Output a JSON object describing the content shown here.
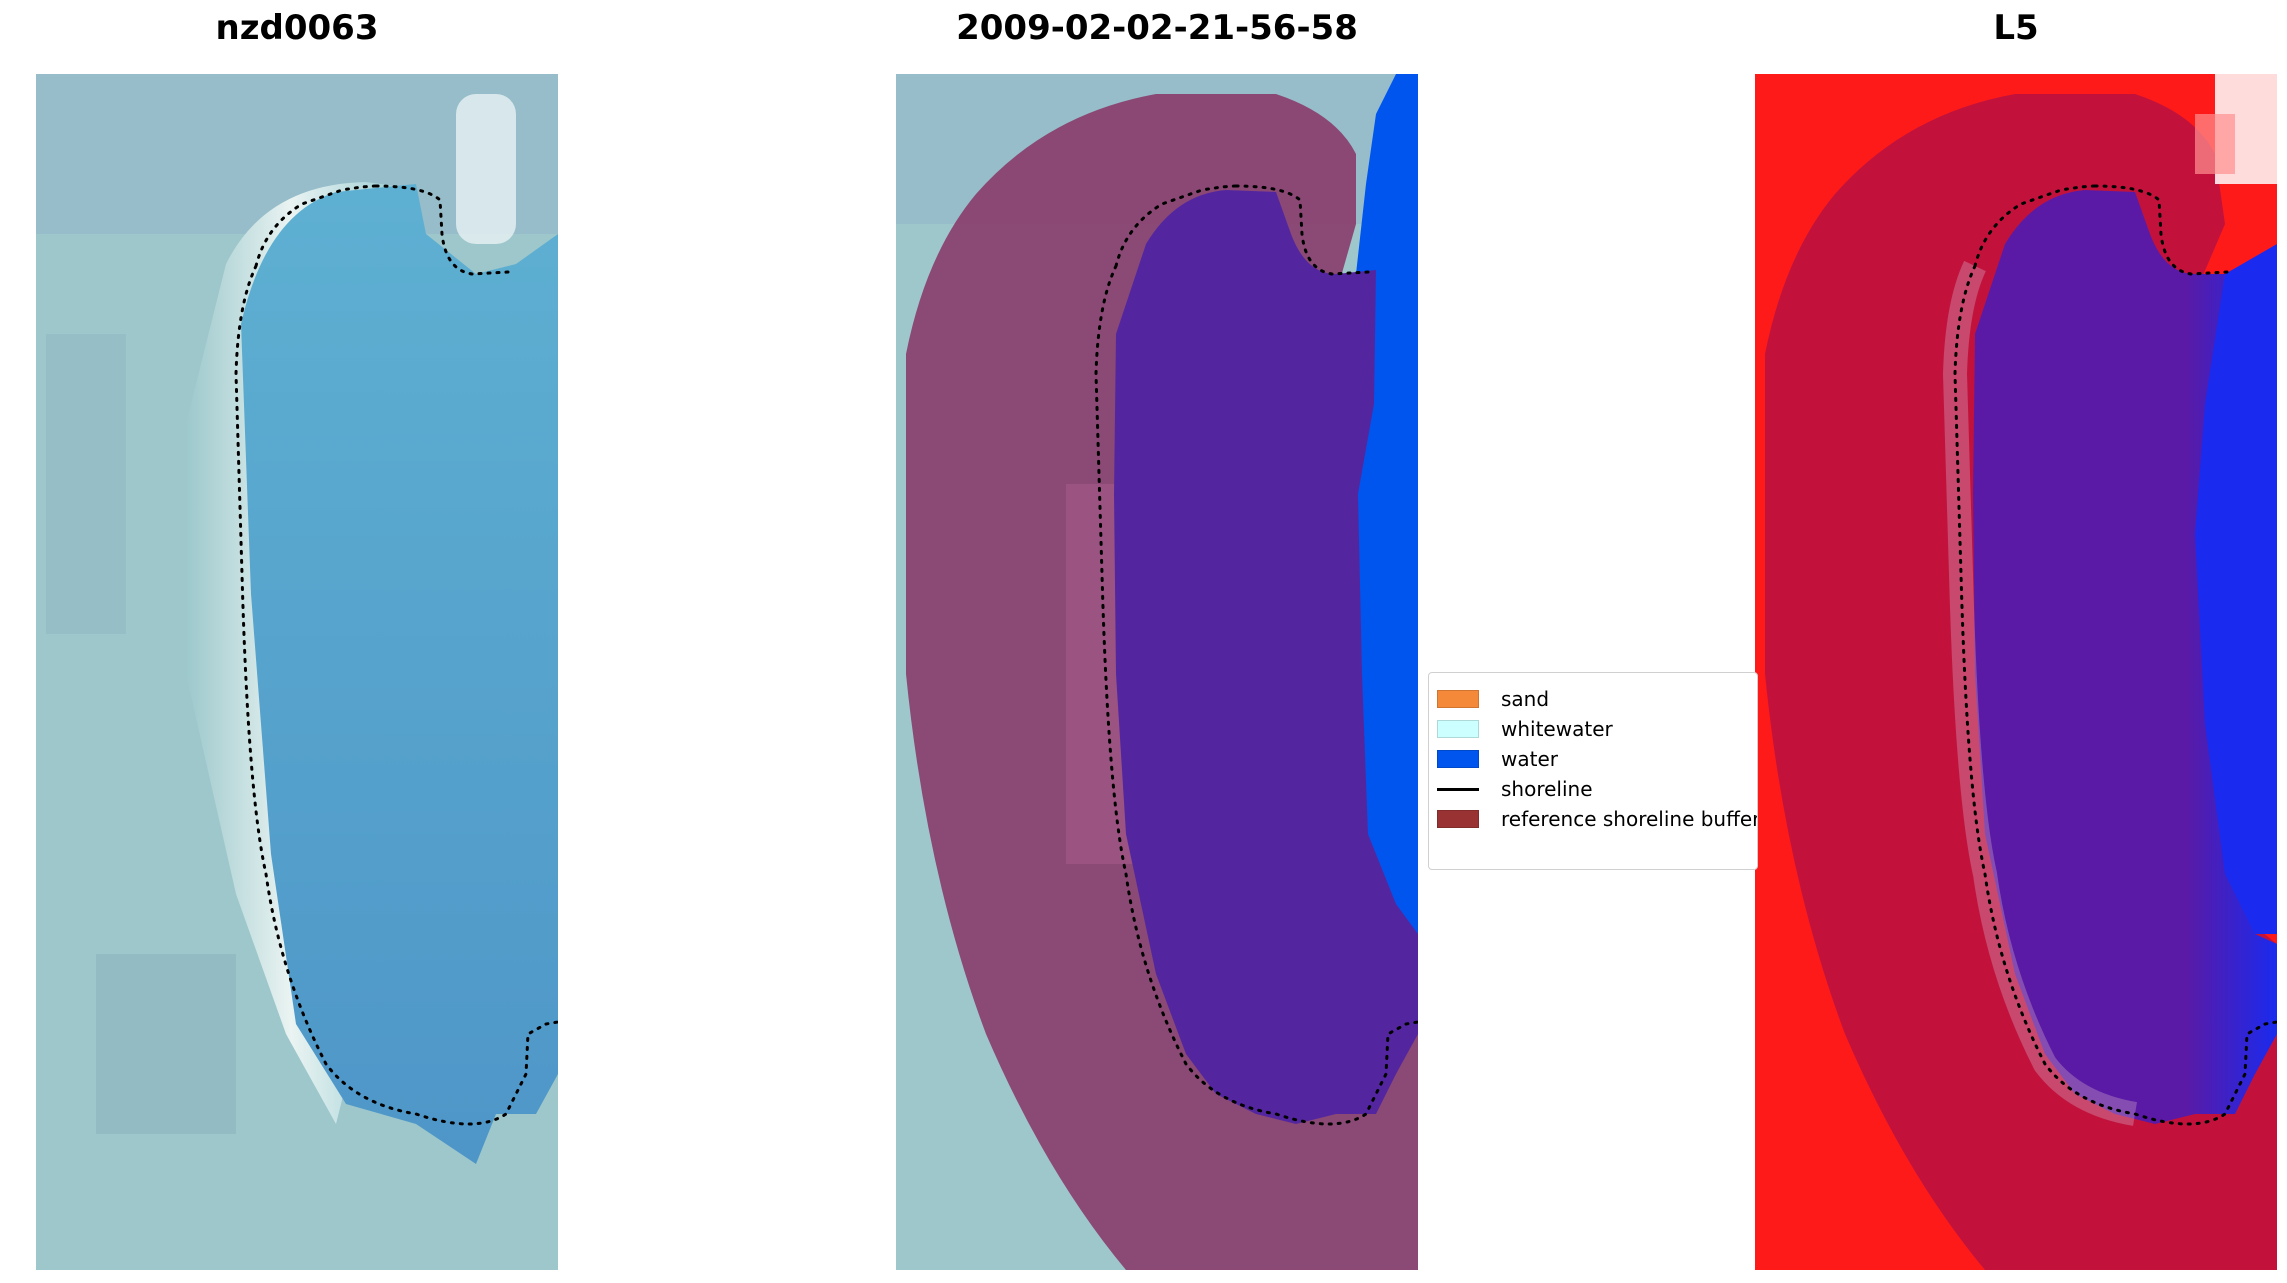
{
  "panels": [
    {
      "title": "nzd0063"
    },
    {
      "title": "2009-02-02-21-56-58"
    },
    {
      "title": "L5"
    }
  ],
  "legend": {
    "items": [
      {
        "label": "sand",
        "color": "#f5893a",
        "kind": "patch"
      },
      {
        "label": "whitewater",
        "color": "#ccffff",
        "kind": "patch"
      },
      {
        "label": "water",
        "color": "#0055ee",
        "kind": "patch"
      },
      {
        "label": "shoreline",
        "color": "#000000",
        "kind": "line"
      },
      {
        "label": "reference shoreline buffer",
        "color": "#993333",
        "kind": "patch"
      }
    ]
  },
  "colors": {
    "rgb_background": "#9cc8cc",
    "rgb_water": "#56a2cc",
    "beach_white": "#e6f2f2",
    "buffer_overlay": "#8a3e6e",
    "classified_water": "#5326a0",
    "ocean_water": "#0055ee",
    "index_red": "#ff1a1a",
    "index_crimson": "#c2123c",
    "index_purple": "#5a1aa5",
    "index_blue": "#1a2aee"
  }
}
